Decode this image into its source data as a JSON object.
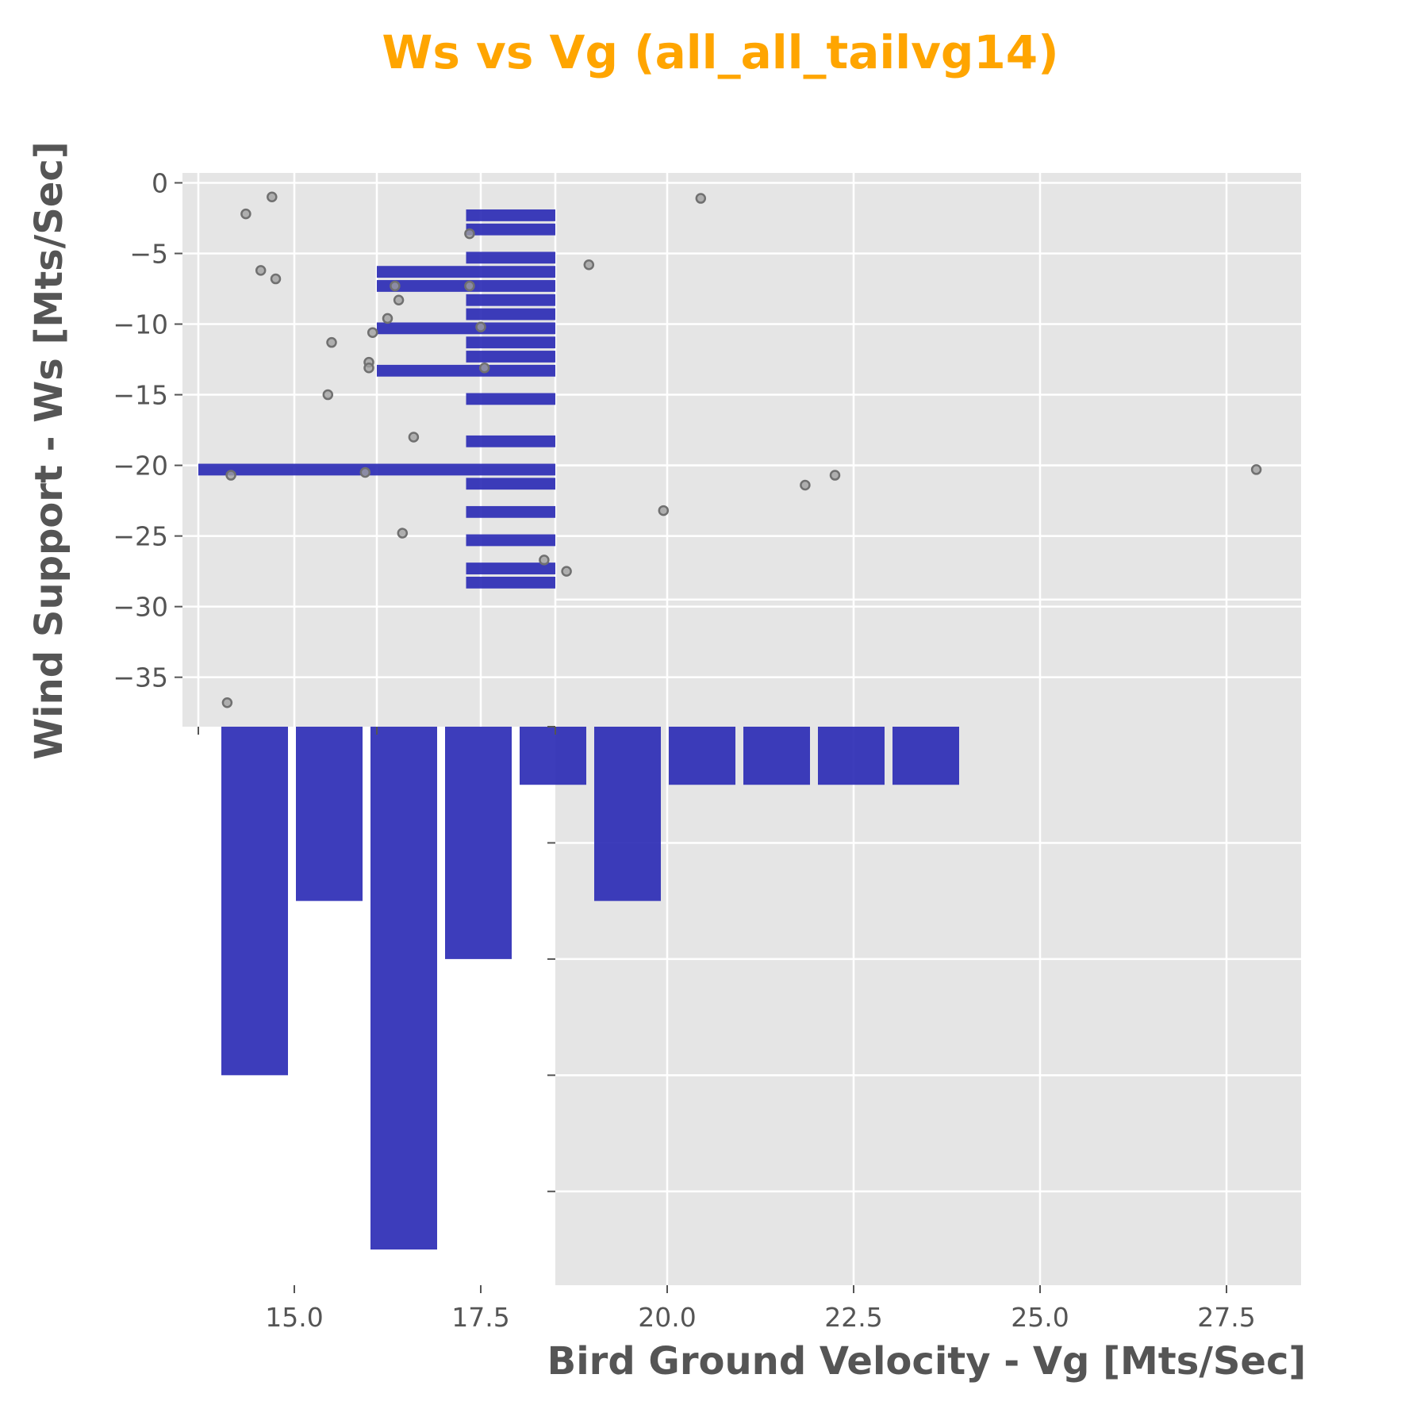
{
  "chart_data": {
    "type": "scatter",
    "title": "Ws vs Vg (all_all_tailvg14)",
    "xlabel": "Bird Ground Velocity - Vg [Mts/Sec]",
    "ylabel": "Wind Support - Ws [Mts/Sec]",
    "xlim": [
      13.5,
      28.5
    ],
    "ylim": [
      -38.5,
      0.7
    ],
    "xticks": [
      15.0,
      17.5,
      20.0,
      22.5,
      25.0,
      27.5
    ],
    "xtick_labels": [
      "15.0",
      "17.5",
      "20.0",
      "22.5",
      "25.0",
      "27.5"
    ],
    "yticks": [
      0,
      -5,
      -10,
      -15,
      -20,
      -25,
      -30,
      -35
    ],
    "ytick_labels": [
      "0",
      "−5",
      "−10",
      "−15",
      "−20",
      "−25",
      "−30",
      "−35"
    ],
    "grid": true,
    "colors": {
      "title": "#ffa500",
      "axis_label": "#555555",
      "tick_label": "#555555",
      "panel_bg": "#e5e5e5",
      "grid": "#ffffff",
      "bar": "#2828b4",
      "point_fill": "#a0a0a0",
      "point_edge": "#707070"
    },
    "points": [
      {
        "x": 14.7,
        "y": -1.0
      },
      {
        "x": 14.35,
        "y": -2.2
      },
      {
        "x": 20.45,
        "y": -1.1
      },
      {
        "x": 17.35,
        "y": -3.6
      },
      {
        "x": 14.55,
        "y": -6.2
      },
      {
        "x": 14.75,
        "y": -6.8
      },
      {
        "x": 18.95,
        "y": -5.8
      },
      {
        "x": 16.35,
        "y": -7.3
      },
      {
        "x": 17.35,
        "y": -7.3
      },
      {
        "x": 16.4,
        "y": -8.3
      },
      {
        "x": 16.25,
        "y": -9.6
      },
      {
        "x": 17.5,
        "y": -10.2
      },
      {
        "x": 16.05,
        "y": -10.6
      },
      {
        "x": 15.5,
        "y": -11.3
      },
      {
        "x": 16.0,
        "y": -12.7
      },
      {
        "x": 16.0,
        "y": -13.1
      },
      {
        "x": 17.55,
        "y": -13.1
      },
      {
        "x": 15.45,
        "y": -15.0
      },
      {
        "x": 16.6,
        "y": -18.0
      },
      {
        "x": 14.15,
        "y": -20.7
      },
      {
        "x": 15.95,
        "y": -20.5
      },
      {
        "x": 21.85,
        "y": -21.4
      },
      {
        "x": 22.25,
        "y": -20.7
      },
      {
        "x": 27.9,
        "y": -20.3
      },
      {
        "x": 19.95,
        "y": -23.2
      },
      {
        "x": 16.45,
        "y": -24.8
      },
      {
        "x": 18.35,
        "y": -26.7
      },
      {
        "x": 18.65,
        "y": -27.5
      },
      {
        "x": 14.1,
        "y": -36.8
      }
    ],
    "histogram_vg": {
      "bin_edges": [
        14.0,
        15.0,
        16.0,
        17.0,
        18.0,
        19.0,
        20.0,
        21.0,
        22.0,
        23.0,
        24.0
      ],
      "counts": [
        6,
        3,
        9,
        4,
        1,
        3,
        1,
        1,
        1,
        1
      ]
    },
    "histogram_ws": {
      "bin_edges": [
        -28.8,
        -27.8,
        -26.8,
        -25.8,
        -24.8,
        -23.8,
        -22.8,
        -21.8,
        -20.8,
        -19.8,
        -18.8,
        -17.8,
        -16.8,
        -15.8,
        -14.8,
        -13.8,
        -12.8,
        -11.8,
        -10.8,
        -9.8,
        -8.8,
        -7.8,
        -6.8,
        -5.8,
        -4.8,
        -3.8,
        -2.8,
        -1.8
      ],
      "counts": [
        1,
        1,
        0,
        1,
        0,
        1,
        0,
        1,
        4,
        0,
        1,
        0,
        0,
        1,
        0,
        2,
        1,
        1,
        2,
        1,
        1,
        2,
        2,
        1,
        0,
        1,
        1
      ]
    }
  }
}
